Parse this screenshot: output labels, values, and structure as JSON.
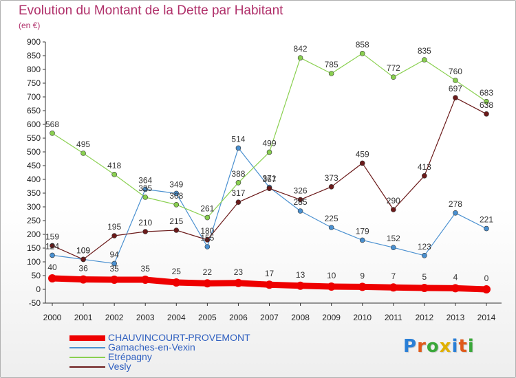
{
  "header": {
    "title": "Evolution du Montant de la Dette par Habitant",
    "subtitle": "(en €)"
  },
  "logo": {
    "text": "Proxiti",
    "colors": [
      "#2a7fd6",
      "#e05a1a",
      "#3aa83a",
      "#e0b000",
      "#2a7fd6",
      "#e05a1a",
      "#3aa83a"
    ]
  },
  "chart_data": {
    "type": "line",
    "x": [
      2000,
      2001,
      2002,
      2003,
      2004,
      2005,
      2006,
      2007,
      2008,
      2009,
      2010,
      2011,
      2012,
      2013,
      2014
    ],
    "ylim": [
      -50,
      900
    ],
    "yticks": [
      -50,
      0,
      50,
      100,
      150,
      200,
      250,
      300,
      350,
      400,
      450,
      500,
      550,
      600,
      650,
      700,
      750,
      800,
      850,
      900
    ],
    "grid": false,
    "legend_position": "bottom-left",
    "series": [
      {
        "name": "CHAUVINCOURT-PROVEMONT",
        "color": "#ee0000",
        "values": [
          40,
          36,
          35,
          35,
          25,
          22,
          23,
          17,
          13,
          10,
          9,
          7,
          5,
          4,
          0
        ]
      },
      {
        "name": "Gamaches-en-Vexin",
        "color": "#4a90d0",
        "values": [
          124,
          109,
          94,
          364,
          349,
          155,
          514,
          371,
          285,
          225,
          179,
          152,
          123,
          278,
          221
        ]
      },
      {
        "name": "Etrépagny",
        "color": "#8ad050",
        "values": [
          568,
          495,
          418,
          335,
          308,
          261,
          388,
          499,
          842,
          785,
          858,
          772,
          835,
          760,
          683
        ]
      },
      {
        "name": "Vesly",
        "color": "#6b1a1a",
        "values": [
          159,
          109,
          195,
          210,
          215,
          180,
          317,
          367,
          326,
          373,
          459,
          290,
          413,
          697,
          638
        ]
      }
    ]
  }
}
